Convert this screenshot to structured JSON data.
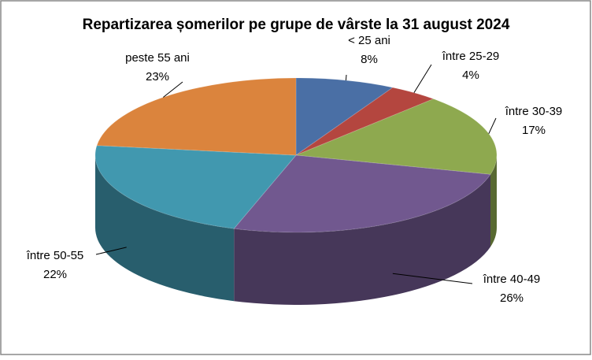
{
  "chart_data": {
    "type": "pie3d",
    "title": "Repartizarea șomerilor pe grupe de vârste la 31 august 2024",
    "categories": [
      "< 25 ani",
      "între 25-29",
      "între 30-39",
      "între 40-49",
      "între 50-55",
      "peste 55 ani"
    ],
    "values": [
      8,
      4,
      17,
      26,
      22,
      23
    ],
    "value_labels": [
      "8%",
      "4%",
      "17%",
      "26%",
      "22%",
      "23%"
    ],
    "colors": [
      "#4a6fa5",
      "#b4463f",
      "#8ea94f",
      "#71588f",
      "#4198af",
      "#db843d"
    ]
  }
}
